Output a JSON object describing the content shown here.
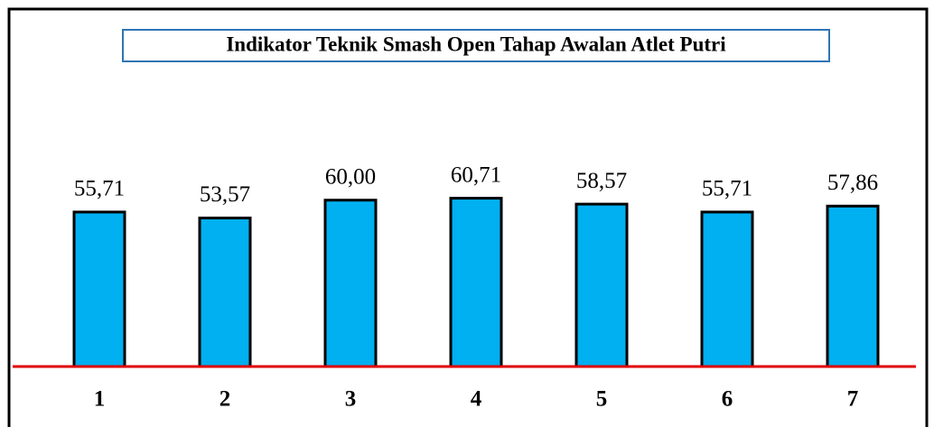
{
  "chart_data": {
    "type": "bar",
    "title": "Indikator Teknik Smash Open Tahap Awalan Atlet Putri",
    "categories": [
      "1",
      "2",
      "3",
      "4",
      "5",
      "6",
      "7"
    ],
    "values": [
      55.71,
      53.57,
      60.0,
      60.71,
      58.57,
      55.71,
      57.86
    ],
    "value_labels": [
      "55,71",
      "53,57",
      "60,00",
      "60,71",
      "58,57",
      "55,71",
      "57,86"
    ],
    "color": "#00b0f0",
    "axis_color": "#e00000",
    "ylim": [
      0,
      70
    ]
  }
}
